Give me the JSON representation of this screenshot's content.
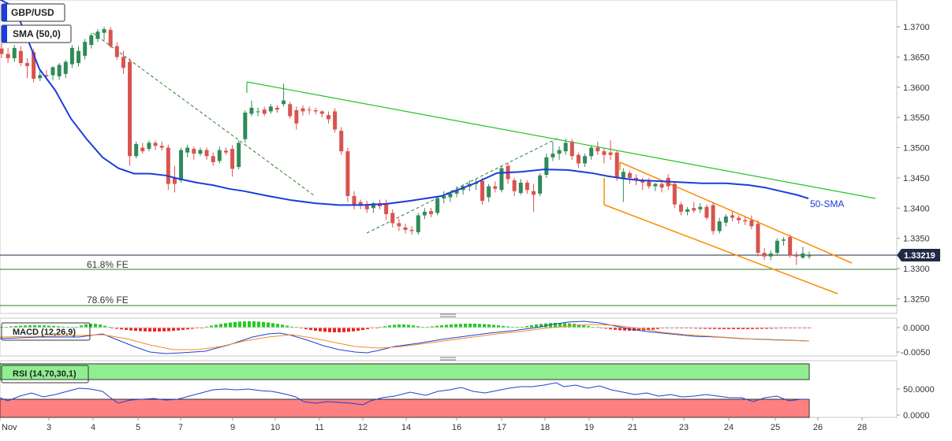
{
  "chart_data": {
    "type": "candlestick",
    "symbol": "GBP/USD",
    "indicator_label": "SMA (50,0)",
    "sma_label": "50-SMA",
    "fe_levels": [
      {
        "label": "61.8% FE",
        "value": 1.3298
      },
      {
        "label": "78.6% FE",
        "value": 1.3238
      }
    ],
    "current_price": {
      "label": "1.33219",
      "value": 1.33219
    },
    "y_ticks": [
      "1.3700",
      "1.3650",
      "1.3600",
      "1.3550",
      "1.3500",
      "1.3450",
      "1.3400",
      "1.3350",
      "1.3300",
      "1.3250"
    ],
    "ylim": [
      1.3215,
      1.3745
    ],
    "x_ticks": [
      "Nov",
      "3",
      "4",
      "5",
      "7",
      "9",
      "10",
      "11",
      "12",
      "14",
      "16",
      "17",
      "18",
      "19",
      "21",
      "23",
      "24",
      "25",
      "26",
      "28"
    ],
    "candles": [
      [
        1.3664,
        1.3674,
        1.3648,
        1.3655
      ],
      [
        1.3655,
        1.3665,
        1.364,
        1.3648
      ],
      [
        1.3648,
        1.367,
        1.3642,
        1.3665
      ],
      [
        1.366,
        1.3668,
        1.3635,
        1.364
      ],
      [
        1.364,
        1.3648,
        1.3615,
        1.3635
      ],
      [
        1.3658,
        1.3664,
        1.3608,
        1.3614
      ],
      [
        1.3615,
        1.363,
        1.361,
        1.362
      ],
      [
        1.362,
        1.3628,
        1.3612,
        1.3618
      ],
      [
        1.362,
        1.3635,
        1.3612,
        1.3633
      ],
      [
        1.3618,
        1.364,
        1.3612,
        1.3637
      ],
      [
        1.3622,
        1.3645,
        1.3615,
        1.3642
      ],
      [
        1.3638,
        1.367,
        1.3632,
        1.3665
      ],
      [
        1.364,
        1.3668,
        1.3634,
        1.366
      ],
      [
        1.3652,
        1.368,
        1.3646,
        1.3675
      ],
      [
        1.367,
        1.369,
        1.3664,
        1.3686
      ],
      [
        1.368,
        1.3696,
        1.3675,
        1.3692
      ],
      [
        1.369,
        1.37,
        1.3678,
        1.3696
      ],
      [
        1.3695,
        1.37,
        1.3665,
        1.3668
      ],
      [
        1.3668,
        1.3674,
        1.3645,
        1.365
      ],
      [
        1.365,
        1.366,
        1.3622,
        1.3632
      ],
      [
        1.3642,
        1.3648,
        1.347,
        1.3486
      ],
      [
        1.3486,
        1.351,
        1.3482,
        1.3506
      ],
      [
        1.35,
        1.3508,
        1.349,
        1.3494
      ],
      [
        1.3498,
        1.3512,
        1.3494,
        1.3508
      ],
      [
        1.3508,
        1.3512,
        1.3496,
        1.3503
      ],
      [
        1.3503,
        1.351,
        1.3495,
        1.35
      ],
      [
        1.35,
        1.3505,
        1.343,
        1.344
      ],
      [
        1.345,
        1.347,
        1.3426,
        1.344
      ],
      [
        1.3446,
        1.35,
        1.3442,
        1.3496
      ],
      [
        1.3492,
        1.3505,
        1.3484,
        1.35
      ],
      [
        1.3498,
        1.3502,
        1.348,
        1.349
      ],
      [
        1.349,
        1.35,
        1.3486,
        1.3496
      ],
      [
        1.3496,
        1.35,
        1.348,
        1.3486
      ],
      [
        1.3486,
        1.3492,
        1.347,
        1.3476
      ],
      [
        1.3478,
        1.3502,
        1.3474,
        1.3496
      ],
      [
        1.3495,
        1.35,
        1.3488,
        1.3492
      ],
      [
        1.3498,
        1.3504,
        1.3452,
        1.3465
      ],
      [
        1.3468,
        1.3512,
        1.3464,
        1.3508
      ],
      [
        1.3514,
        1.3562,
        1.3508,
        1.3558
      ],
      [
        1.3556,
        1.3578,
        1.3552,
        1.3566
      ],
      [
        1.356,
        1.3566,
        1.3552,
        1.356
      ],
      [
        1.3563,
        1.3568,
        1.3552,
        1.3556
      ],
      [
        1.356,
        1.3572,
        1.3556,
        1.3568
      ],
      [
        1.3566,
        1.357,
        1.3558,
        1.3563
      ],
      [
        1.3572,
        1.3606,
        1.3568,
        1.3578
      ],
      [
        1.3572,
        1.3576,
        1.3548,
        1.3552
      ],
      [
        1.3562,
        1.3568,
        1.353,
        1.354
      ],
      [
        1.3565,
        1.357,
        1.3553,
        1.356
      ],
      [
        1.3563,
        1.3568,
        1.3555,
        1.3562
      ],
      [
        1.3562,
        1.3566,
        1.3555,
        1.356
      ],
      [
        1.356,
        1.3562,
        1.355,
        1.3556
      ],
      [
        1.3554,
        1.356,
        1.354,
        1.3547
      ],
      [
        1.356,
        1.3565,
        1.3525,
        1.353
      ],
      [
        1.3528,
        1.3534,
        1.3488,
        1.3494
      ],
      [
        1.3494,
        1.35,
        1.341,
        1.342
      ],
      [
        1.342,
        1.3428,
        1.3398,
        1.3404
      ],
      [
        1.341,
        1.3414,
        1.3398,
        1.3404
      ],
      [
        1.3405,
        1.3412,
        1.3392,
        1.3398
      ],
      [
        1.34,
        1.341,
        1.3392,
        1.3408
      ],
      [
        1.3408,
        1.3414,
        1.3398,
        1.3403
      ],
      [
        1.3408,
        1.3414,
        1.338,
        1.339
      ],
      [
        1.3392,
        1.3398,
        1.3368,
        1.3375
      ],
      [
        1.3375,
        1.3382,
        1.3362,
        1.337
      ],
      [
        1.3368,
        1.3374,
        1.3358,
        1.3364
      ],
      [
        1.3364,
        1.337,
        1.3356,
        1.3362
      ],
      [
        1.336,
        1.3392,
        1.3356,
        1.3388
      ],
      [
        1.3388,
        1.34,
        1.3382,
        1.3394
      ],
      [
        1.3395,
        1.34,
        1.3385,
        1.339
      ],
      [
        1.3392,
        1.342,
        1.3388,
        1.3416
      ],
      [
        1.3416,
        1.3428,
        1.3408,
        1.342
      ],
      [
        1.3418,
        1.3428,
        1.341,
        1.3424
      ],
      [
        1.3424,
        1.3436,
        1.3418,
        1.343
      ],
      [
        1.343,
        1.344,
        1.3422,
        1.3436
      ],
      [
        1.3436,
        1.3446,
        1.3428,
        1.344
      ],
      [
        1.344,
        1.3448,
        1.343,
        1.3442
      ],
      [
        1.3445,
        1.345,
        1.3406,
        1.3412
      ],
      [
        1.3418,
        1.344,
        1.341,
        1.3436
      ],
      [
        1.3436,
        1.3444,
        1.3426,
        1.3432
      ],
      [
        1.343,
        1.347,
        1.3426,
        1.3466
      ],
      [
        1.347,
        1.3475,
        1.344,
        1.3448
      ],
      [
        1.3446,
        1.345,
        1.342,
        1.3428
      ],
      [
        1.3425,
        1.3448,
        1.3422,
        1.3442
      ],
      [
        1.3442,
        1.3446,
        1.3424,
        1.343
      ],
      [
        1.3428,
        1.344,
        1.3394,
        1.3422
      ],
      [
        1.3424,
        1.3458,
        1.342,
        1.3454
      ],
      [
        1.3455,
        1.349,
        1.345,
        1.3484
      ],
      [
        1.3484,
        1.351,
        1.3478,
        1.349
      ],
      [
        1.349,
        1.3502,
        1.348,
        1.3496
      ],
      [
        1.3494,
        1.3515,
        1.3488,
        1.3508
      ],
      [
        1.351,
        1.3514,
        1.348,
        1.3486
      ],
      [
        1.3488,
        1.3492,
        1.3466,
        1.3474
      ],
      [
        1.3474,
        1.349,
        1.3468,
        1.3486
      ],
      [
        1.3486,
        1.3504,
        1.348,
        1.35
      ],
      [
        1.35,
        1.351,
        1.3488,
        1.3494
      ],
      [
        1.3494,
        1.3498,
        1.3474,
        1.3488
      ],
      [
        1.3492,
        1.3512,
        1.348,
        1.3488
      ],
      [
        1.3492,
        1.3496,
        1.3445,
        1.345
      ],
      [
        1.345,
        1.3466,
        1.341,
        1.346
      ],
      [
        1.3458,
        1.3462,
        1.344,
        1.345
      ],
      [
        1.345,
        1.3456,
        1.3438,
        1.3446
      ],
      [
        1.3446,
        1.345,
        1.343,
        1.3442
      ],
      [
        1.3444,
        1.345,
        1.3432,
        1.3436
      ],
      [
        1.3436,
        1.3442,
        1.3428,
        1.344
      ],
      [
        1.344,
        1.3444,
        1.3426,
        1.3434
      ],
      [
        1.345,
        1.3456,
        1.343,
        1.3436
      ],
      [
        1.344,
        1.3444,
        1.34,
        1.3406
      ],
      [
        1.3406,
        1.341,
        1.3388,
        1.3394
      ],
      [
        1.3394,
        1.3402,
        1.3388,
        1.3398
      ],
      [
        1.34,
        1.341,
        1.3392,
        1.3396
      ],
      [
        1.3398,
        1.3408,
        1.3392,
        1.3402
      ],
      [
        1.3402,
        1.3406,
        1.338,
        1.3384
      ],
      [
        1.3405,
        1.341,
        1.3356,
        1.3362
      ],
      [
        1.3362,
        1.3384,
        1.3358,
        1.3378
      ],
      [
        1.3376,
        1.339,
        1.337,
        1.3386
      ],
      [
        1.3388,
        1.3394,
        1.3378,
        1.3384
      ],
      [
        1.3384,
        1.3388,
        1.3374,
        1.338
      ],
      [
        1.338,
        1.3386,
        1.3372,
        1.3378
      ],
      [
        1.338,
        1.3388,
        1.3365,
        1.337
      ],
      [
        1.3374,
        1.338,
        1.332,
        1.3326
      ],
      [
        1.3326,
        1.3334,
        1.3314,
        1.332
      ],
      [
        1.332,
        1.333,
        1.3314,
        1.3325
      ],
      [
        1.3326,
        1.335,
        1.3322,
        1.3346
      ],
      [
        1.3346,
        1.3352,
        1.3338,
        1.3348
      ],
      [
        1.3352,
        1.3356,
        1.3318,
        1.3322
      ],
      [
        1.3322,
        1.3328,
        1.3306,
        1.332
      ],
      [
        1.3318,
        1.3336,
        1.3316,
        1.3325
      ],
      [
        1.332,
        1.3328,
        1.3316,
        1.3322
      ]
    ],
    "sma": [
      [
        0,
        1.3745
      ],
      [
        12,
        1.3737
      ],
      [
        24,
        1.3714
      ],
      [
        36,
        1.3676
      ],
      [
        50,
        1.363
      ],
      [
        70,
        1.3595
      ],
      [
        90,
        1.3548
      ],
      [
        110,
        1.3514
      ],
      [
        130,
        1.3484
      ],
      [
        150,
        1.3466
      ],
      [
        170,
        1.3457
      ],
      [
        190,
        1.3457
      ],
      [
        210,
        1.3454
      ],
      [
        228,
        1.3448
      ],
      [
        250,
        1.3442
      ],
      [
        270,
        1.3438
      ],
      [
        290,
        1.3432
      ],
      [
        310,
        1.3428
      ],
      [
        340,
        1.342
      ],
      [
        370,
        1.3413
      ],
      [
        400,
        1.3408
      ],
      [
        430,
        1.3405
      ],
      [
        460,
        1.3405
      ],
      [
        490,
        1.3407
      ],
      [
        520,
        1.3412
      ],
      [
        560,
        1.342
      ],
      [
        600,
        1.344
      ],
      [
        630,
        1.3458
      ],
      [
        660,
        1.346
      ],
      [
        690,
        1.3464
      ],
      [
        720,
        1.3463
      ],
      [
        750,
        1.3458
      ],
      [
        770,
        1.3453
      ],
      [
        790,
        1.3449
      ],
      [
        810,
        1.3446
      ],
      [
        830,
        1.3445
      ],
      [
        860,
        1.3443
      ],
      [
        890,
        1.3441
      ],
      [
        920,
        1.3441
      ],
      [
        950,
        1.3438
      ],
      [
        970,
        1.3434
      ],
      [
        990,
        1.3428
      ],
      [
        1010,
        1.3422
      ],
      [
        1025,
        1.3416
      ]
    ],
    "macd": {
      "label": "MACD (12,26,9)",
      "y_ticks": [
        "0.0000",
        "-0.0050"
      ]
    },
    "rsi": {
      "label": "RSI (14,70,30,1)",
      "y_ticks": [
        "50.0000",
        "0.0000"
      ]
    }
  }
}
